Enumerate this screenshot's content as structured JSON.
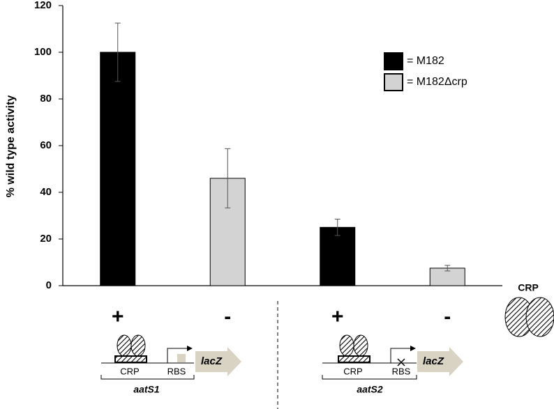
{
  "chart_data": {
    "type": "bar",
    "y_label": "% wild type activity",
    "categories": [
      "+",
      "-",
      "+",
      "-"
    ],
    "series": [
      {
        "name": "= M182",
        "color": "#000000",
        "values": [
          100,
          null,
          25,
          null
        ],
        "errors": [
          12.5,
          null,
          3.5,
          null
        ]
      },
      {
        "name": "= M182Δcrp",
        "color": "#d3d3d3",
        "values": [
          null,
          46,
          null,
          7.5
        ],
        "errors": [
          null,
          12.7,
          null,
          1.2
        ]
      }
    ],
    "ylim": [
      0,
      120
    ],
    "yticks": [
      0,
      20,
      40,
      60,
      80,
      100,
      120
    ],
    "grid": false
  },
  "crp_label": "CRP",
  "constructs": [
    {
      "site": "CRP",
      "rbs": "RBS",
      "gene": "lacZ",
      "name": "aatS1"
    },
    {
      "site": "CRP",
      "rbs": "RBS",
      "gene": "lacZ",
      "name": "aatS2"
    }
  ]
}
